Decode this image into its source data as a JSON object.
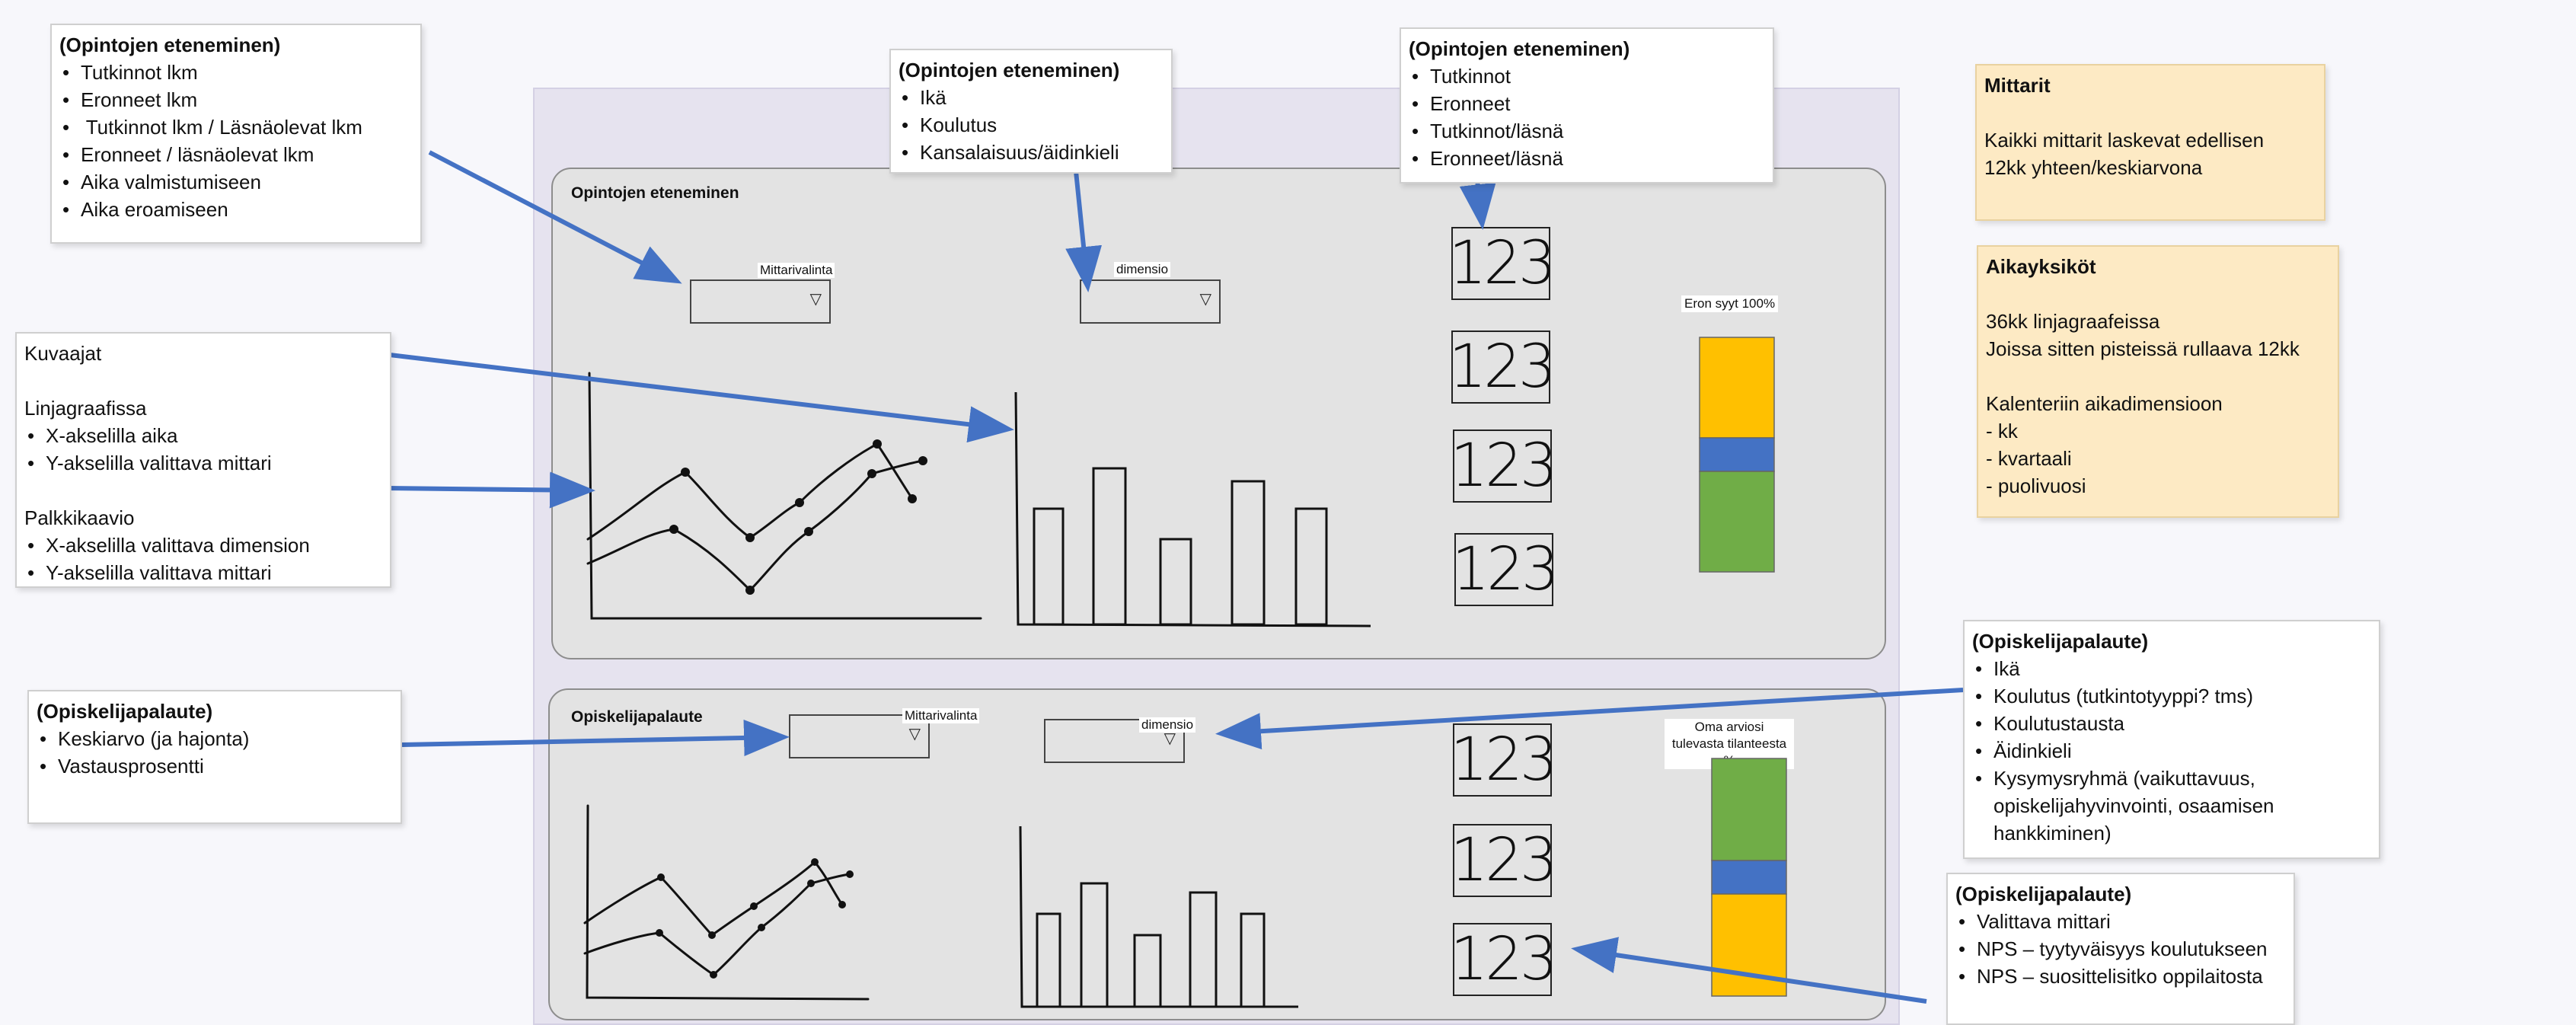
{
  "panels": {
    "top": {
      "title": "Opintojen eteneminen",
      "dropdown1": "Mittarivalinta",
      "dropdown2": "dimensio",
      "kpis": [
        "123",
        "123",
        "123",
        "123"
      ],
      "stack_label": "Eron syyt 100%"
    },
    "bottom": {
      "title": "Opiskelijapalaute",
      "dropdown1": "Mittarivalinta",
      "dropdown2": "dimensio",
      "kpis": [
        "123",
        "123",
        "123"
      ],
      "stack_label_1": "Oma arviosi",
      "stack_label_2": "tulevasta tilanteesta %"
    }
  },
  "cards": {
    "mittari_list": {
      "title": "(Opintojen eteneminen)",
      "items": [
        "Tutkinnot lkm",
        "Eronneet lkm",
        " Tutkinnot lkm / Läsnäolevat lkm",
        "Eronneet / läsnäolevat lkm",
        "Aika valmistumiseen",
        "Aika eroamiseen"
      ]
    },
    "dimensio_list": {
      "title": "(Opintojen eteneminen)",
      "items": [
        "Ikä",
        "Koulutus",
        "Kansalaisuus/äidinkieli"
      ]
    },
    "kpi_list": {
      "title": "(Opintojen eteneminen)",
      "items": [
        "Tutkinnot",
        "Eronneet",
        "Tutkinnot/läsnä",
        "Eronneet/läsnä"
      ]
    },
    "kuvaajat": {
      "heading": "Kuvaajat",
      "line_heading": "Linjagraafissa",
      "line_items": [
        "X-akselilla aika",
        "Y-akselilla valittava mittari"
      ],
      "bar_heading": "Palkkikaavio",
      "bar_items": [
        "X-akselilla valittava dimension",
        "Y-akselilla valittava mittari"
      ]
    },
    "palaute_mittari": {
      "title": "(Opiskelijapalaute)",
      "items": [
        "Keskiarvo (ja hajonta)",
        "Vastausprosentti"
      ]
    },
    "palaute_dimensio": {
      "title": "(Opiskelijapalaute)",
      "items": [
        "Ikä",
        "Koulutus (tutkintotyyppi? tms)",
        "Koulutustausta",
        "Äidinkieli",
        "Kysymysryhmä (vaikuttavuus, opiskelijahyvinvointi, osaamisen hankkiminen)"
      ]
    },
    "palaute_kpi": {
      "title": "(Opiskelijapalaute)",
      "items": [
        "Valittava mittari",
        "NPS – tyytyväisyys koulutukseen",
        "NPS – suosittelisitko oppilaitosta"
      ]
    }
  },
  "notes": {
    "mittarit": {
      "title": "Mittarit",
      "lines": [
        "Kaikki mittarit laskevat edellisen",
        "12kk yhteen/keskiarvona"
      ]
    },
    "aikayksikot": {
      "title": "Aikayksiköt",
      "lines": [
        "36kk linjagraafeissa",
        "Joissa sitten pisteissä rullaava 12kk",
        "Kalenteriin aikadimensioon",
        "- kk",
        "- kvartaali",
        "- puolivuosi"
      ]
    }
  },
  "colors": {
    "stack_orange": "#ffc000",
    "stack_blue": "#4472c4",
    "stack_green": "#70ad47",
    "arrow": "#4472c4"
  }
}
